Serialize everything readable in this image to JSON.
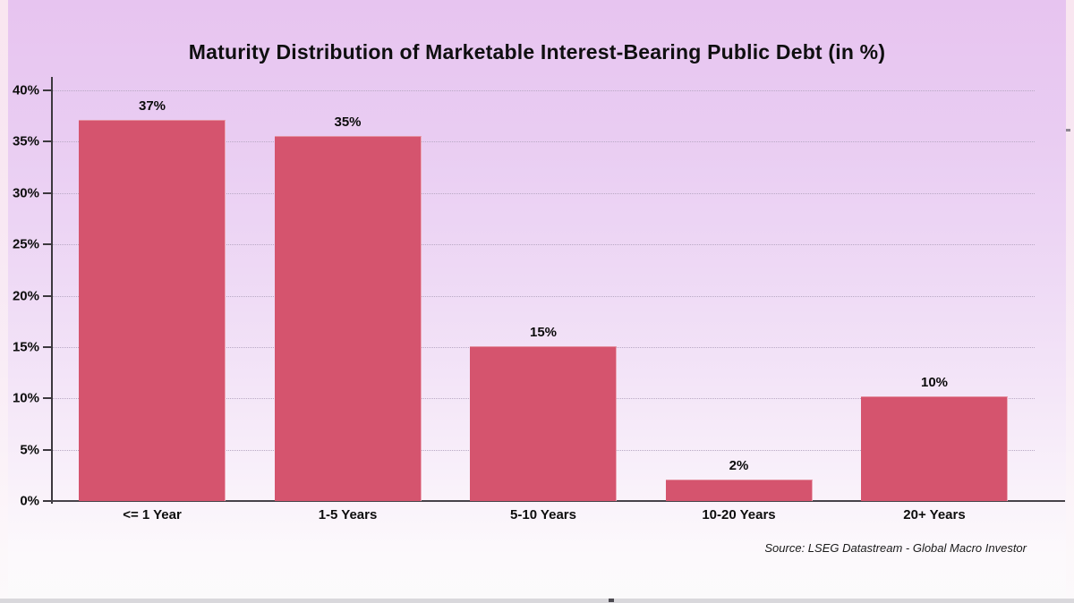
{
  "chart_data": {
    "type": "bar",
    "title": "Maturity Distribution of Marketable Interest-Bearing Public Debt (in %)",
    "categories": [
      "<= 1 Year",
      "1-5 Years",
      "5-10 Years",
      "10-20 Years",
      "20+ Years"
    ],
    "values": [
      37,
      35,
      15,
      2,
      10
    ],
    "value_labels": [
      "37%",
      "35%",
      "15%",
      "2%",
      "10%"
    ],
    "ytick_labels": [
      "0%",
      "5%",
      "10%",
      "15%",
      "20%",
      "25%",
      "30%",
      "35%",
      "40%"
    ],
    "ylim": [
      0,
      40
    ],
    "ytick_step": 5,
    "xlabel": "",
    "ylabel": "",
    "grid": "dotted-horizontal",
    "legend": "none",
    "source_note": "Source: LSEG Datastream - Global Macro Investor",
    "render_heights_pct": [
      37.1,
      35.55,
      15.1,
      2.1,
      10.2
    ],
    "colors": {
      "bar": "#d5546e",
      "background_top": "#e7c4f0",
      "background_bottom": "#fbfafb",
      "gridline": "#b9a9c4",
      "axis": "#3c383e",
      "text": "#0d0d0d",
      "source_text": "#1a1a1a",
      "bottom_bar": "#d9d8dc"
    }
  }
}
